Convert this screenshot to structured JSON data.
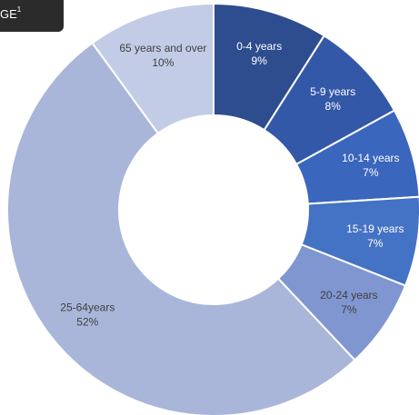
{
  "header_tab": {
    "text": "GE",
    "superscript": "1"
  },
  "chart_data": {
    "type": "pie",
    "variant": "donut",
    "title": "",
    "legend": "none",
    "categories": [
      "0-4 years",
      "5-9 years",
      "10-14 years",
      "15-19 years",
      "20-24 years",
      "25-64years",
      "65 years and over"
    ],
    "values": [
      9,
      8,
      7,
      7,
      7,
      52,
      10
    ],
    "value_labels": [
      "9%",
      "8%",
      "7%",
      "7%",
      "7%",
      "52%",
      "10%"
    ],
    "colors": [
      "#2e4d8f",
      "#3358a8",
      "#3a66bd",
      "#4472c4",
      "#8096d0",
      "#a9b6da",
      "#c3cce6"
    ],
    "label_colors": [
      "#ffffff",
      "#ffffff",
      "#ffffff",
      "#ffffff",
      "#404040",
      "#404040",
      "#404040"
    ]
  }
}
